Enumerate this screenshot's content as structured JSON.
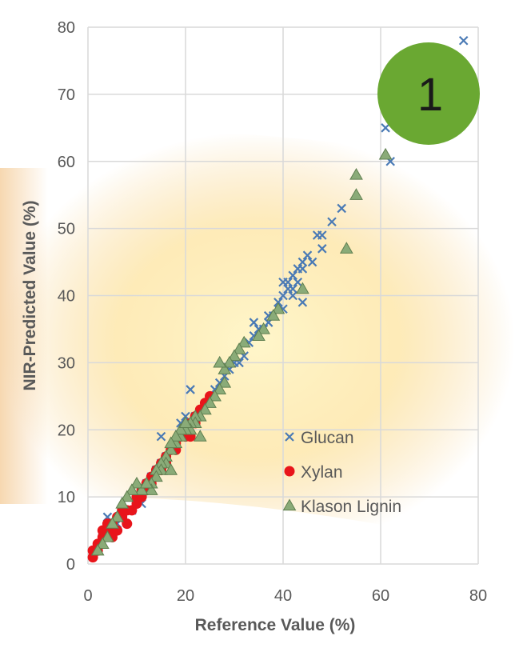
{
  "badge": {
    "label": "1",
    "color": "#6aa832"
  },
  "colors": {
    "glucan": "#4a7ab5",
    "xylan": "#e8151b",
    "lignin_fill": "#8aab78",
    "lignin_stroke": "#5f7f50",
    "grid": "#d9d9d9",
    "text": "#595959"
  },
  "chart_data": {
    "type": "scatter",
    "title": "",
    "xlabel": "Reference Value (%)",
    "ylabel": "NIR-Predicted Value (%)",
    "xlim": [
      0,
      80
    ],
    "ylim": [
      0,
      80
    ],
    "x_ticks": [
      "0",
      "20",
      "40",
      "60",
      "80"
    ],
    "y_ticks": [
      "0",
      "10",
      "20",
      "30",
      "40",
      "50",
      "60",
      "70",
      "80"
    ],
    "grid": true,
    "legend_position": "lower-right",
    "series": [
      {
        "name": "Glucan",
        "marker": "x",
        "points": [
          [
            77,
            78
          ],
          [
            61,
            65
          ],
          [
            62,
            60
          ],
          [
            67,
            64
          ],
          [
            52,
            53
          ],
          [
            50,
            51
          ],
          [
            48,
            49
          ],
          [
            47,
            49
          ],
          [
            48,
            47
          ],
          [
            46,
            45
          ],
          [
            45,
            46
          ],
          [
            44,
            45
          ],
          [
            44,
            44
          ],
          [
            43,
            44
          ],
          [
            42,
            43
          ],
          [
            43,
            42
          ],
          [
            41,
            42
          ],
          [
            41,
            41
          ],
          [
            42,
            40
          ],
          [
            40,
            42
          ],
          [
            40,
            40
          ],
          [
            39,
            39
          ],
          [
            39,
            38
          ],
          [
            44,
            39
          ],
          [
            42,
            41
          ],
          [
            40,
            38
          ],
          [
            38,
            37
          ],
          [
            37,
            36
          ],
          [
            36,
            35
          ],
          [
            37,
            37
          ],
          [
            35,
            35
          ],
          [
            34,
            34
          ],
          [
            33,
            33
          ],
          [
            34,
            36
          ],
          [
            32,
            31
          ],
          [
            31,
            30
          ],
          [
            30,
            30
          ],
          [
            29,
            29
          ],
          [
            28,
            28
          ],
          [
            27,
            27
          ],
          [
            26,
            26
          ],
          [
            21,
            26
          ],
          [
            20,
            22
          ],
          [
            19,
            21
          ],
          [
            22,
            22
          ],
          [
            21,
            20
          ],
          [
            18,
            18
          ],
          [
            15,
            19
          ],
          [
            17,
            17
          ],
          [
            16,
            16
          ],
          [
            15,
            15
          ],
          [
            14,
            14
          ],
          [
            13,
            13
          ],
          [
            12,
            12
          ],
          [
            11,
            11
          ],
          [
            10,
            10
          ],
          [
            11,
            9
          ],
          [
            9,
            8
          ],
          [
            8,
            8
          ],
          [
            7,
            7
          ],
          [
            6,
            6
          ],
          [
            4,
            7
          ],
          [
            5,
            5
          ],
          [
            3,
            4
          ]
        ]
      },
      {
        "name": "Xylan",
        "marker": "circle",
        "points": [
          [
            1,
            1
          ],
          [
            1,
            2
          ],
          [
            2,
            3
          ],
          [
            2,
            2
          ],
          [
            3,
            4
          ],
          [
            3,
            5
          ],
          [
            4,
            5
          ],
          [
            4,
            6
          ],
          [
            5,
            6
          ],
          [
            5,
            4
          ],
          [
            6,
            5
          ],
          [
            6,
            7
          ],
          [
            7,
            7
          ],
          [
            7,
            8
          ],
          [
            8,
            8
          ],
          [
            8,
            6
          ],
          [
            9,
            8
          ],
          [
            10,
            9
          ],
          [
            10,
            10
          ],
          [
            11,
            10
          ],
          [
            11,
            11
          ],
          [
            12,
            12
          ],
          [
            13,
            13
          ],
          [
            14,
            14
          ],
          [
            15,
            15
          ],
          [
            15,
            14
          ],
          [
            16,
            16
          ],
          [
            16,
            15
          ],
          [
            17,
            17
          ],
          [
            18,
            17
          ],
          [
            18,
            18
          ],
          [
            19,
            19
          ],
          [
            20,
            19
          ],
          [
            20,
            20
          ],
          [
            21,
            21
          ],
          [
            22,
            21
          ],
          [
            22,
            22
          ],
          [
            23,
            23
          ],
          [
            24,
            24
          ],
          [
            25,
            25
          ],
          [
            21,
            19
          ],
          [
            13,
            12
          ],
          [
            12,
            11
          ]
        ]
      },
      {
        "name": "Klason Lignin",
        "marker": "triangle",
        "points": [
          [
            61,
            61
          ],
          [
            55,
            58
          ],
          [
            55,
            55
          ],
          [
            53,
            47
          ],
          [
            44,
            41
          ],
          [
            39,
            38
          ],
          [
            38,
            37
          ],
          [
            36,
            35
          ],
          [
            35,
            34
          ],
          [
            32,
            33
          ],
          [
            31,
            32
          ],
          [
            30,
            31
          ],
          [
            29,
            30
          ],
          [
            28,
            29
          ],
          [
            28,
            27
          ],
          [
            27,
            30
          ],
          [
            27,
            26
          ],
          [
            26,
            25
          ],
          [
            25,
            24
          ],
          [
            24,
            23
          ],
          [
            23,
            22
          ],
          [
            22,
            22
          ],
          [
            22,
            21
          ],
          [
            21,
            21
          ],
          [
            21,
            20
          ],
          [
            20,
            20
          ],
          [
            19,
            19
          ],
          [
            19,
            20
          ],
          [
            18,
            18
          ],
          [
            18,
            19
          ],
          [
            17,
            17
          ],
          [
            17,
            18
          ],
          [
            16,
            16
          ],
          [
            16,
            15
          ],
          [
            15,
            15
          ],
          [
            15,
            14
          ],
          [
            14,
            14
          ],
          [
            14,
            13
          ],
          [
            13,
            12
          ],
          [
            13,
            11
          ],
          [
            11,
            11
          ],
          [
            10,
            12
          ],
          [
            9,
            11
          ],
          [
            8,
            10
          ],
          [
            7,
            9
          ],
          [
            6,
            7
          ],
          [
            5,
            6
          ],
          [
            4,
            4
          ],
          [
            3,
            3
          ],
          [
            2,
            2
          ],
          [
            23,
            19
          ],
          [
            20,
            21
          ],
          [
            17,
            14
          ],
          [
            12,
            12
          ]
        ]
      }
    ]
  }
}
